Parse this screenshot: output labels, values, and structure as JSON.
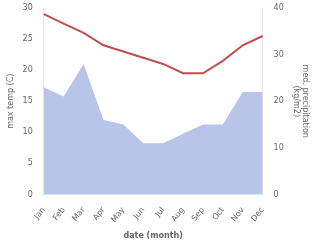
{
  "chart_data": {
    "type": "line",
    "categories": [
      "Jan",
      "Feb",
      "Mar",
      "Apr",
      "May",
      "Jun",
      "Jul",
      "Aug",
      "Sep",
      "Oct",
      "Nov",
      "Dec"
    ],
    "series": [
      {
        "type": "area",
        "color": "#b8c4e8",
        "axis": "y2",
        "values": [
          23,
          21,
          28,
          16,
          15,
          11,
          11,
          13,
          15,
          15,
          22,
          22
        ]
      },
      {
        "type": "line",
        "color": "#c0504d",
        "values": [
          29,
          27.5,
          26,
          24,
          23,
          22,
          21,
          19.5,
          19.5,
          21.5,
          24,
          25.5
        ]
      }
    ],
    "xlabel": "date (month)",
    "ylabel": "max temp (C)",
    "y2label": "med. precipitation\n(kg/m2)",
    "ylim": [
      0,
      30
    ],
    "yticks": [
      0,
      5,
      10,
      15,
      20,
      25,
      30
    ],
    "y2lim": [
      0,
      40
    ],
    "y2ticks": [
      0,
      10,
      20,
      30,
      40
    ],
    "grid": false
  }
}
